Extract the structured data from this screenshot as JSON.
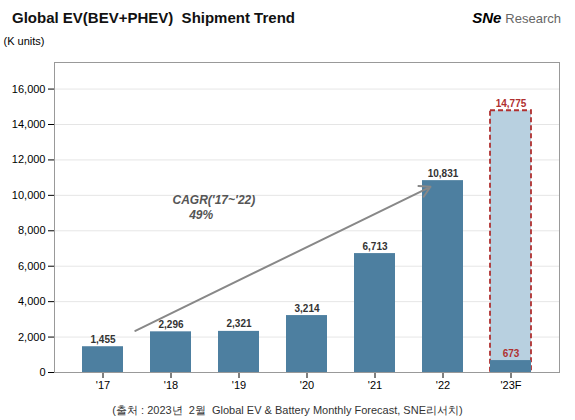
{
  "chart_data": {
    "type": "bar",
    "title": "Global EV(BEV+PHEV)  Shipment Trend",
    "ylabel": "(K units)",
    "categories": [
      "'17",
      "'18",
      "'19",
      "'20",
      "'21",
      "'22",
      "'23F"
    ],
    "values": [
      1455,
      2296,
      2321,
      3214,
      6713,
      10831,
      673
    ],
    "value_labels": [
      "1,455",
      "2,296",
      "2,321",
      "3,214",
      "6,713",
      "10,831",
      "673"
    ],
    "color": "#4d7fa0",
    "data_labels": true,
    "forecast": {
      "category": "'23F",
      "value": 14775,
      "value_label": "14,775",
      "color": "#b8d0e0",
      "edge_color": "#b03030",
      "line_style": "dashed"
    },
    "ylim": [
      0,
      17500
    ],
    "yticks": [
      0,
      {
        "value": 2000,
        "label": "2,000"
      },
      {
        "value": 4000,
        "label": "4,000"
      },
      {
        "value": 6000,
        "label": "6,000"
      },
      {
        "value": 8000,
        "label": "8,000"
      },
      {
        "value": 10000,
        "label": "10,000"
      },
      {
        "value": 12000,
        "label": "12,000"
      },
      {
        "value": 14000,
        "label": "14,000"
      },
      {
        "value": 16000,
        "label": "16,000"
      }
    ],
    "grid": true,
    "annotations": [
      {
        "text": "CAGR('17~'22)\n     49%"
      }
    ],
    "logo": [
      "SNe",
      "Research"
    ],
    "caption": "(출처 : 2023년  2월  Global EV & Battery Monthly Forecast, SNE리서치)"
  }
}
